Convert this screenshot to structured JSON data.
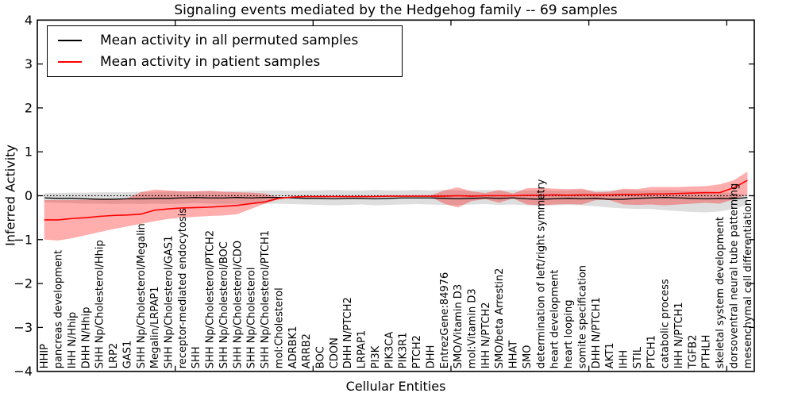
{
  "figure": {
    "title": "Signaling events mediated by the Hedgehog family -- 69 samples",
    "xlabel": "Cellular Entities",
    "ylabel": "Inferred Activity"
  },
  "legend": {
    "position": "upper left",
    "entries": [
      {
        "label": "Mean activity in all permuted samples",
        "color": "#000000"
      },
      {
        "label": "Mean activity in patient samples",
        "color": "#ff0000"
      }
    ]
  },
  "chart_data": {
    "type": "line",
    "title": "Signaling events mediated by the Hedgehog family -- 69 samples",
    "xlabel": "Cellular Entities",
    "ylabel": "Inferred Activity",
    "ylim": [
      -4,
      4
    ],
    "grid": false,
    "zero_line": "dotted-black",
    "yticks": [
      {
        "value": 4,
        "label": "4"
      },
      {
        "value": 3,
        "label": "3"
      },
      {
        "value": 2,
        "label": "2"
      },
      {
        "value": 1,
        "label": "1"
      },
      {
        "value": 0,
        "label": "0"
      },
      {
        "value": -1,
        "label": "−1"
      },
      {
        "value": -2,
        "label": "−2"
      },
      {
        "value": -3,
        "label": "−3"
      },
      {
        "value": -4,
        "label": "−4"
      }
    ],
    "categories": [
      "HHIP",
      "pancreas development",
      "IHH N/Hhip",
      "DHH N/Hhip",
      "SHH Np/Cholesterol/Hhip",
      "LRP2",
      "GAS1",
      "SHH Np/Cholesterol/Megalin",
      "Megalin/LRPAP1",
      "SHH Np/Cholesterol/GAS1",
      "receptor-mediated endocytosis",
      "SHH",
      "SHH Np/Cholesterol/PTCH2",
      "SHH Np/Cholesterol/BOC",
      "SHH Np/Cholesterol/CDO",
      "SHH Np/Cholesterol",
      "SHH Np/Cholesterol/PTCH1",
      "mol:Cholesterol",
      "ADRBK1",
      "ARRB2",
      "BOC",
      "CDON",
      "DHH N/PTCH2",
      "LRPAP1",
      "PI3K",
      "PIK3CA",
      "PIK3R1",
      "PTCH2",
      "DHH",
      "EntrezGene:84976",
      "SMO/Vitamin D3",
      "mol:Vitamin D3",
      "IHH N/PTCH2",
      "SMO/beta Arrestin2",
      "HHAT",
      "SMO",
      "determination of left/right symmetry",
      "heart development",
      "heart looping",
      "somite specification",
      "DHH N/PTCH1",
      "AKT1",
      "IHH",
      "STIL",
      "PTCH1",
      "catabolic process",
      "IHH N/PTCH1",
      "TGFB2",
      "PTHLH",
      "skeletal system development",
      "dorsoventral neural tube patterning",
      "mesenchymal cell differentiation"
    ],
    "series": [
      {
        "name": "Mean activity in all permuted samples",
        "color": "#000000",
        "values": [
          -0.05,
          -0.06,
          -0.06,
          -0.07,
          -0.08,
          -0.08,
          -0.07,
          -0.07,
          -0.06,
          -0.06,
          -0.05,
          -0.04,
          -0.05,
          -0.05,
          -0.04,
          -0.05,
          -0.04,
          -0.04,
          -0.05,
          -0.06,
          -0.06,
          -0.07,
          -0.06,
          -0.06,
          -0.07,
          -0.06,
          -0.05,
          -0.05,
          -0.05,
          -0.06,
          -0.07,
          -0.06,
          -0.05,
          -0.06,
          -0.05,
          -0.07,
          -0.08,
          -0.07,
          -0.06,
          -0.07,
          -0.06,
          -0.08,
          -0.08,
          -0.06,
          -0.05,
          -0.04,
          -0.05,
          -0.06,
          -0.07,
          -0.06,
          -0.07,
          -0.04
        ]
      },
      {
        "name": "Mean activity in patient samples",
        "color": "#ff0000",
        "values": [
          -0.55,
          -0.55,
          -0.52,
          -0.5,
          -0.47,
          -0.45,
          -0.44,
          -0.42,
          -0.33,
          -0.3,
          -0.28,
          -0.27,
          -0.26,
          -0.24,
          -0.22,
          -0.18,
          -0.14,
          -0.06,
          -0.03,
          -0.02,
          -0.02,
          -0.02,
          -0.02,
          -0.02,
          -0.02,
          -0.01,
          -0.01,
          -0.01,
          -0.01,
          -0.01,
          0.0,
          -0.01,
          0.0,
          0.0,
          0.0,
          0.01,
          0.01,
          0.02,
          0.01,
          0.02,
          0.02,
          0.02,
          0.03,
          0.03,
          0.04,
          0.04,
          0.05,
          0.06,
          0.07,
          0.07,
          0.18,
          0.35
        ]
      }
    ],
    "bands": [
      {
        "name": "permuted-samples-range",
        "color": "#000000",
        "alpha": 0.13,
        "upper": [
          0.06,
          0.06,
          0.07,
          0.07,
          0.08,
          0.08,
          0.08,
          0.09,
          0.09,
          0.1,
          0.1,
          0.1,
          0.11,
          0.1,
          0.11,
          0.11,
          0.12,
          0.12,
          0.11,
          0.12,
          0.12,
          0.13,
          0.12,
          0.12,
          0.13,
          0.12,
          0.12,
          0.13,
          0.12,
          0.13,
          0.12,
          0.12,
          0.13,
          0.12,
          0.13,
          0.12,
          0.13,
          0.12,
          0.12,
          0.13,
          0.12,
          0.12,
          0.13,
          0.12,
          0.12,
          0.13,
          0.12,
          0.11,
          0.1,
          0.08,
          0.06,
          0.02
        ],
        "lower": [
          -0.15,
          -0.16,
          -0.17,
          -0.18,
          -0.18,
          -0.19,
          -0.18,
          -0.19,
          -0.18,
          -0.19,
          -0.18,
          -0.17,
          -0.18,
          -0.19,
          -0.18,
          -0.19,
          -0.18,
          -0.18,
          -0.19,
          -0.2,
          -0.21,
          -0.22,
          -0.21,
          -0.2,
          -0.22,
          -0.21,
          -0.2,
          -0.19,
          -0.2,
          -0.21,
          -0.22,
          -0.2,
          -0.19,
          -0.21,
          -0.2,
          -0.22,
          -0.23,
          -0.22,
          -0.21,
          -0.22,
          -0.24,
          -0.27,
          -0.29,
          -0.3,
          -0.3,
          -0.33,
          -0.35,
          -0.37,
          -0.38,
          -0.36,
          -0.3,
          -0.21
        ]
      },
      {
        "name": "patient-samples-range",
        "color": "#ff0000",
        "alpha": 0.32,
        "upper": [
          -0.1,
          -0.1,
          -0.1,
          -0.09,
          -0.08,
          -0.07,
          -0.06,
          0.08,
          0.14,
          0.12,
          0.1,
          0.1,
          0.11,
          0.09,
          0.08,
          0.07,
          0.05,
          -0.04,
          -0.02,
          -0.01,
          -0.01,
          -0.01,
          -0.01,
          -0.01,
          -0.01,
          0.0,
          0.0,
          0.0,
          0.0,
          0.12,
          0.19,
          0.1,
          0.06,
          0.13,
          0.05,
          0.17,
          0.18,
          0.16,
          0.15,
          0.16,
          0.08,
          0.09,
          0.16,
          0.15,
          0.2,
          0.2,
          0.2,
          0.21,
          0.22,
          0.26,
          0.35,
          0.55
        ],
        "lower": [
          -1.0,
          -1.02,
          -0.97,
          -0.9,
          -0.83,
          -0.76,
          -0.7,
          -0.64,
          -0.58,
          -0.53,
          -0.5,
          -0.48,
          -0.46,
          -0.45,
          -0.42,
          -0.3,
          -0.18,
          -0.08,
          -0.04,
          -0.03,
          -0.03,
          -0.03,
          -0.03,
          -0.03,
          -0.03,
          -0.02,
          -0.02,
          -0.02,
          -0.02,
          -0.18,
          -0.27,
          -0.12,
          -0.08,
          -0.16,
          -0.06,
          -0.2,
          -0.22,
          -0.2,
          -0.19,
          -0.2,
          -0.1,
          -0.1,
          -0.2,
          -0.21,
          -0.2,
          -0.22,
          -0.2,
          -0.18,
          -0.16,
          -0.18,
          -0.08,
          0.02
        ]
      }
    ],
    "legend_position": "upper left"
  }
}
